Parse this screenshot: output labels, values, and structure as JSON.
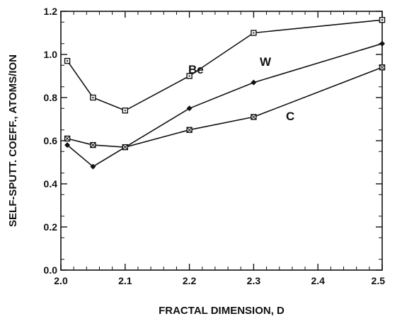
{
  "chart_data": {
    "type": "line",
    "xlabel": "FRACTAL DIMENSION, D",
    "ylabel": "SELF-SPUTT. COEFF., ATOMS/ION",
    "xlim": [
      2.0,
      2.5
    ],
    "ylim": [
      0.0,
      1.2
    ],
    "x_ticks": [
      "2.0",
      "2.1",
      "2.2",
      "2.3",
      "2.4",
      "2.5"
    ],
    "y_ticks": [
      "0.0",
      "0.2",
      "0.4",
      "0.6",
      "0.8",
      "1.0",
      "1.2"
    ],
    "grid": false,
    "series": [
      {
        "name": "Be",
        "marker": "square-dot",
        "points": [
          {
            "x": 2.01,
            "y": 0.97
          },
          {
            "x": 2.05,
            "y": 0.8
          },
          {
            "x": 2.1,
            "y": 0.74
          },
          {
            "x": 2.2,
            "y": 0.9
          },
          {
            "x": 2.3,
            "y": 1.1
          },
          {
            "x": 2.5,
            "y": 1.16
          }
        ]
      },
      {
        "name": "W",
        "marker": "diamond",
        "points": [
          {
            "x": 2.01,
            "y": 0.58
          },
          {
            "x": 2.05,
            "y": 0.48
          },
          {
            "x": 2.1,
            "y": 0.57
          },
          {
            "x": 2.2,
            "y": 0.75
          },
          {
            "x": 2.3,
            "y": 0.87
          },
          {
            "x": 2.5,
            "y": 1.05
          }
        ]
      },
      {
        "name": "C",
        "marker": "square-x",
        "points": [
          {
            "x": 2.01,
            "y": 0.61
          },
          {
            "x": 2.05,
            "y": 0.58
          },
          {
            "x": 2.1,
            "y": 0.57
          },
          {
            "x": 2.2,
            "y": 0.65
          },
          {
            "x": 2.3,
            "y": 0.71
          },
          {
            "x": 2.5,
            "y": 0.94
          }
        ]
      }
    ]
  }
}
